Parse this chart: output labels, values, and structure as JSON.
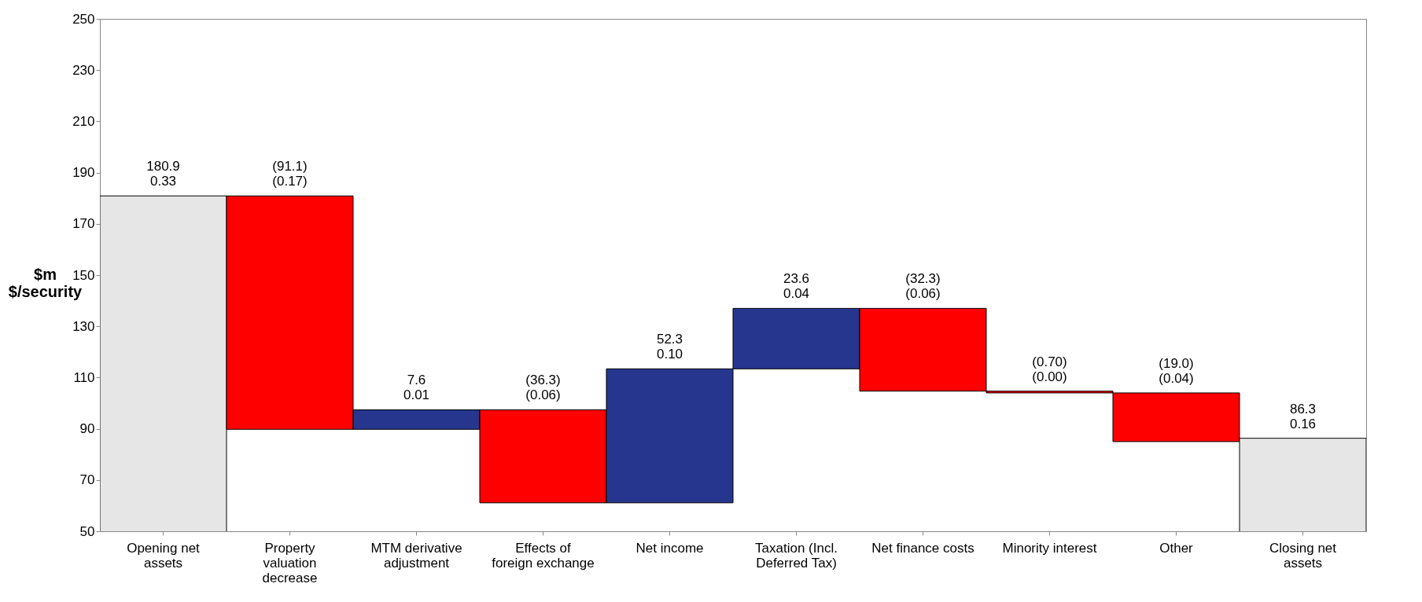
{
  "chart_data": {
    "type": "bar",
    "ylabel": "$m\n$/security",
    "categories": [
      "Opening net assets",
      "Property valuation decrease",
      "MTM derivative adjustment",
      "Effects of foreign exchange",
      "Net income",
      "Taxation (Incl. Deferred Tax)",
      "Net finance costs",
      "Minority interest",
      "Other",
      "Closing net assets"
    ],
    "base": [
      0,
      180.9,
      89.8,
      97.4,
      61.1,
      113.4,
      137.0,
      104.7,
      104.0,
      0
    ],
    "values": [
      180.9,
      -91.1,
      7.6,
      -36.3,
      52.3,
      23.6,
      -32.3,
      -0.7,
      -19.0,
      86.3
    ],
    "colors": [
      "#e6e6e6",
      "#ff0000",
      "#26368f",
      "#ff0000",
      "#26368f",
      "#26368f",
      "#ff0000",
      "#ff0000",
      "#ff0000",
      "#e6e6e6"
    ],
    "value_labels": [
      "180.9\n0.33",
      "(91.1)\n(0.17)",
      "7.6\n0.01",
      "(36.3)\n(0.06)",
      "52.3\n0.10",
      "23.6\n0.04",
      "(32.3)\n(0.06)",
      "(0.70)\n(0.00)",
      "(19.0)\n(0.04)",
      "86.3\n0.16"
    ],
    "ylim": [
      50,
      250
    ],
    "yticks": [
      50,
      70,
      90,
      110,
      130,
      150,
      170,
      190,
      210,
      230,
      250
    ],
    "grid": false
  }
}
